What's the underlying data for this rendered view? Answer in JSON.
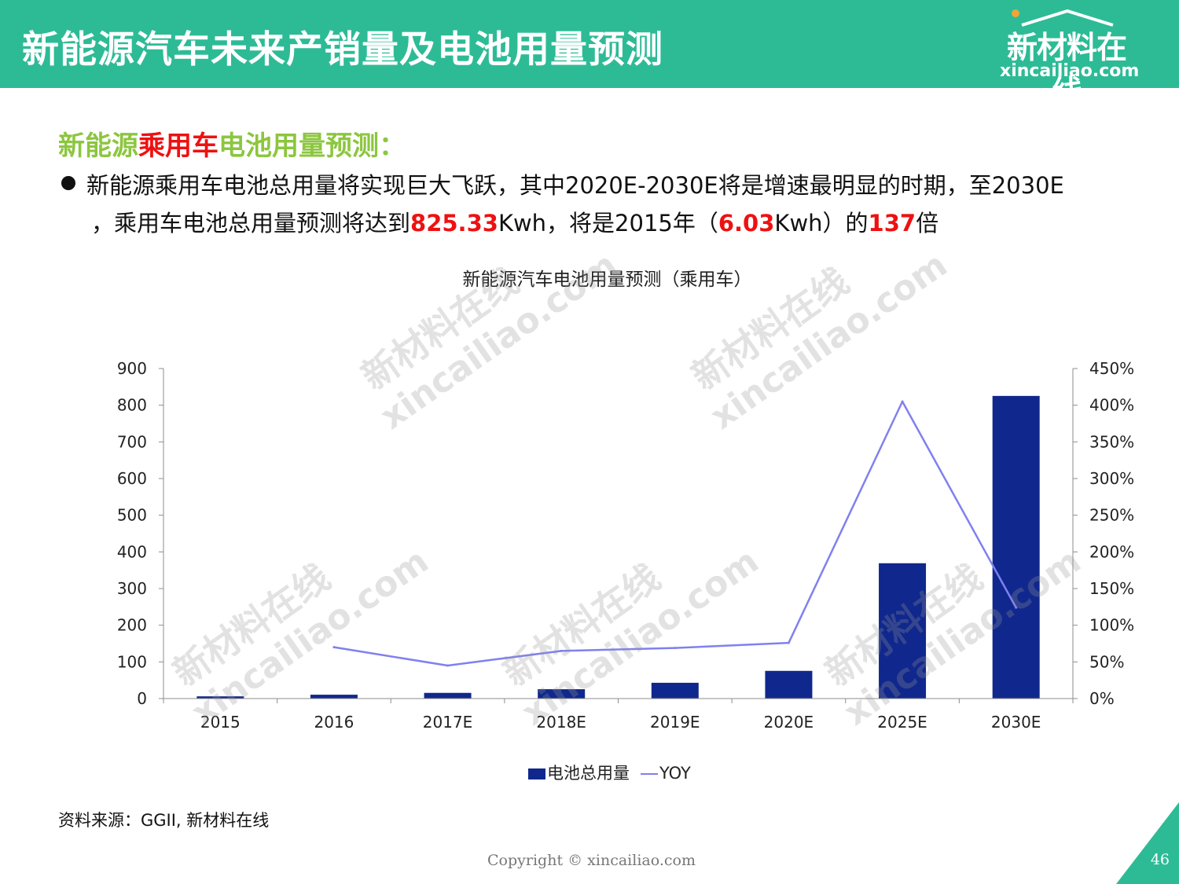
{
  "header": {
    "title": "新能源汽车未来产销量及电池用量预测",
    "logo_cn": "新材料在线",
    "logo_url": "xincailiao.com"
  },
  "section": {
    "title_part1": "新能源",
    "title_part2": "乘用车",
    "title_part3": "电池用量预测：",
    "bullet_line1": "新能源乘用车电池总用量将实现巨大飞跃，其中2020E-2030E将是增速最明显的时期，至2030E",
    "bullet_line2_a": "，乘用车电池总用量预测将达到",
    "bullet_value1": "825.33",
    "bullet_line2_b": "Kwh，将是2015年（",
    "bullet_value2": "6.03",
    "bullet_line2_c": "Kwh）的",
    "bullet_value3": "137",
    "bullet_line2_d": "倍"
  },
  "watermark": {
    "cn": "新材料在线",
    "en": "xincailiao.com"
  },
  "chart_data": {
    "type": "bar",
    "title": "新能源汽车电池用量预测（乘用车）",
    "categories": [
      "2015",
      "2016",
      "2017E",
      "2018E",
      "2019E",
      "2020E",
      "2025E",
      "2030E"
    ],
    "series": [
      {
        "name": "电池总用量",
        "type": "bar",
        "axis": "left",
        "color": "#10288d",
        "values": [
          6.03,
          10.5,
          15.5,
          25.5,
          43,
          75.5,
          369,
          825.33
        ]
      },
      {
        "name": "YOY",
        "type": "line",
        "axis": "right",
        "color": "#8080f0",
        "values": [
          null,
          70,
          45,
          65,
          69,
          76,
          405,
          124
        ]
      }
    ],
    "y_left": {
      "min": 0,
      "max": 900,
      "ticks": [
        "0",
        "100",
        "200",
        "300",
        "400",
        "500",
        "600",
        "700",
        "800",
        "900"
      ]
    },
    "y_right": {
      "min": 0,
      "max": 450,
      "ticks": [
        "0%",
        "50%",
        "100%",
        "150%",
        "200%",
        "250%",
        "300%",
        "350%",
        "400%",
        "450%"
      ]
    },
    "legend_position": "bottom",
    "grid": false
  },
  "footer": {
    "source": "资料来源：GGII, 新材料在线",
    "copyright": "Copyright © xincailiao.com",
    "page_number": "46"
  }
}
